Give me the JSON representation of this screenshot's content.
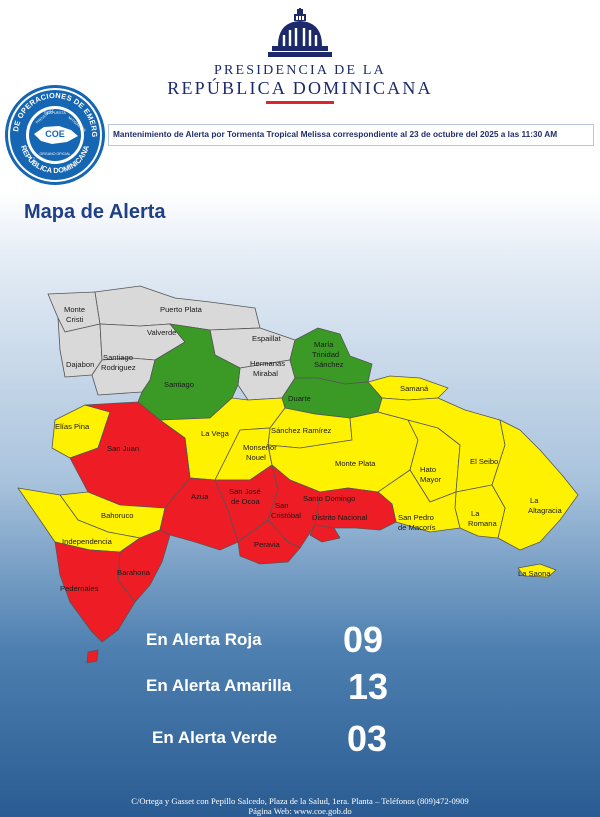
{
  "header": {
    "presidency_line1": "PRESIDENCIA DE LA",
    "presidency_line2": "REPÚBLICA DOMINICANA",
    "seal": {
      "ring_text": "CENTRO DE OPERACIONES DE EMERGENCIAS",
      "inner_left": "PREVENCIÓN",
      "inner_mid": "RESPUESTA",
      "inner_right": "MITIGACIÓN",
      "center": "COE",
      "bottom_small": "ORGANO OFICIAL",
      "bottom": "REPÚBLICA DOMINICANA"
    },
    "subtitle": "Mantenimiento de Alerta por Tormenta Tropical Melissa correspondiente al 23 de octubre del 2025 a las 11:30 AM"
  },
  "map_title": "Mapa de Alerta",
  "colors": {
    "rojo": "#ee1c25",
    "amarillo": "#fff200",
    "verde": "#3b9a26",
    "sin_alerta": "#d9d9d9",
    "border": "#555555",
    "title_blue": "#1f3f86",
    "bar_red": "#d9252b"
  },
  "provinces": [
    {
      "name": "Monte Cristi",
      "alert": "none"
    },
    {
      "name": "Puerto Plata",
      "alert": "none"
    },
    {
      "name": "Valverde",
      "alert": "none"
    },
    {
      "name": "Dajabon",
      "alert": "none"
    },
    {
      "name": "Santiago Rodriguez",
      "alert": "none"
    },
    {
      "name": "Espaillat",
      "alert": "none"
    },
    {
      "name": "Hermanas Mirabal",
      "alert": "none"
    },
    {
      "name": "Santiago",
      "alert": "verde"
    },
    {
      "name": "María Trinidad Sánchez",
      "alert": "verde"
    },
    {
      "name": "Duarte",
      "alert": "verde"
    },
    {
      "name": "Samaná",
      "alert": "amarilla"
    },
    {
      "name": "Elías Pina",
      "alert": "amarilla"
    },
    {
      "name": "La Vega",
      "alert": "amarilla"
    },
    {
      "name": "Sánchez Ramírez",
      "alert": "amarilla"
    },
    {
      "name": "Monseñor Nouel",
      "alert": "amarilla"
    },
    {
      "name": "Monte Plata",
      "alert": "amarilla"
    },
    {
      "name": "Hato Mayor",
      "alert": "amarilla"
    },
    {
      "name": "El Seibo",
      "alert": "amarilla"
    },
    {
      "name": "La Altagracia",
      "alert": "amarilla"
    },
    {
      "name": "La Romana",
      "alert": "amarilla"
    },
    {
      "name": "San Pedro de Macorís",
      "alert": "amarilla"
    },
    {
      "name": "Bahoruco",
      "alert": "amarilla"
    },
    {
      "name": "Independencia",
      "alert": "amarilla"
    },
    {
      "name": "San Juan",
      "alert": "roja"
    },
    {
      "name": "Azua",
      "alert": "roja"
    },
    {
      "name": "San José de Ocoa",
      "alert": "roja"
    },
    {
      "name": "San Cristóbal",
      "alert": "roja"
    },
    {
      "name": "Santo Domingo",
      "alert": "roja"
    },
    {
      "name": "Distrito Nacional",
      "alert": "roja"
    },
    {
      "name": "Peravia",
      "alert": "roja"
    },
    {
      "name": "Barahona",
      "alert": "roja"
    },
    {
      "name": "Pedernales",
      "alert": "roja"
    }
  ],
  "map_labels": {
    "monte_cristi_1": "Monte",
    "monte_cristi_2": "Cristi",
    "puerto_plata": "Puerto Plata",
    "valverde": "Valverde",
    "dajabon": "Dajabon",
    "santiago_rodriguez_1": "Santiago",
    "santiago_rodriguez_2": "Rodriguez",
    "espaillat": "Espaillat",
    "hermanas_mirabal_1": "Hermanas",
    "hermanas_mirabal_2": "Mirabal",
    "santiago": "Santiago",
    "mts_1": "María",
    "mts_2": "Trinidad",
    "mts_3": "Sánchez",
    "duarte": "Duarte",
    "samana": "Samaná",
    "elias_pina": "Elías Pina",
    "la_vega": "La Vega",
    "sanchez_ramirez": "Sánchez Ramírez",
    "monsenor_nouel_1": "Monseñor",
    "monsenor_nouel_2": "Nouel",
    "monte_plata": "Monte Plata",
    "hato_mayor_1": "Hato",
    "hato_mayor_2": "Mayor",
    "el_seibo": "El Seibo",
    "la_altagracia_1": "La",
    "la_altagracia_2": "Altagracia",
    "la_romana_1": "La",
    "la_romana_2": "Romana",
    "san_pedro_1": "San Pedro",
    "san_pedro_2": "de Macorís",
    "bahoruco": "Bahoruco",
    "independencia": "Independencia",
    "san_juan": "San Juan",
    "azua": "Azua",
    "ocoa_1": "San José",
    "ocoa_2": "de Ocoa",
    "san_cristobal_1": "San",
    "san_cristobal_2": "Cristóbal",
    "santo_domingo": "Santo Domingo",
    "distrito_nacional": "Distrito Nacional",
    "peravia": "Peravia",
    "barahona": "Barahona",
    "pedernales": "Pedernales",
    "la_saona": "La Saona"
  },
  "summary": [
    {
      "label": "En Alerta Roja",
      "value": "09"
    },
    {
      "label": "En Alerta Amarilla",
      "value": "13"
    },
    {
      "label": "En Alerta Verde",
      "value": "03"
    }
  ],
  "footer": {
    "line1": "C/Ortega y Gasset con Pepillo Salcedo, Plaza de la Salud, 1era. Planta – Teléfonos (809)472-0909",
    "line2": "Página Web: www.coe.gob.do"
  }
}
